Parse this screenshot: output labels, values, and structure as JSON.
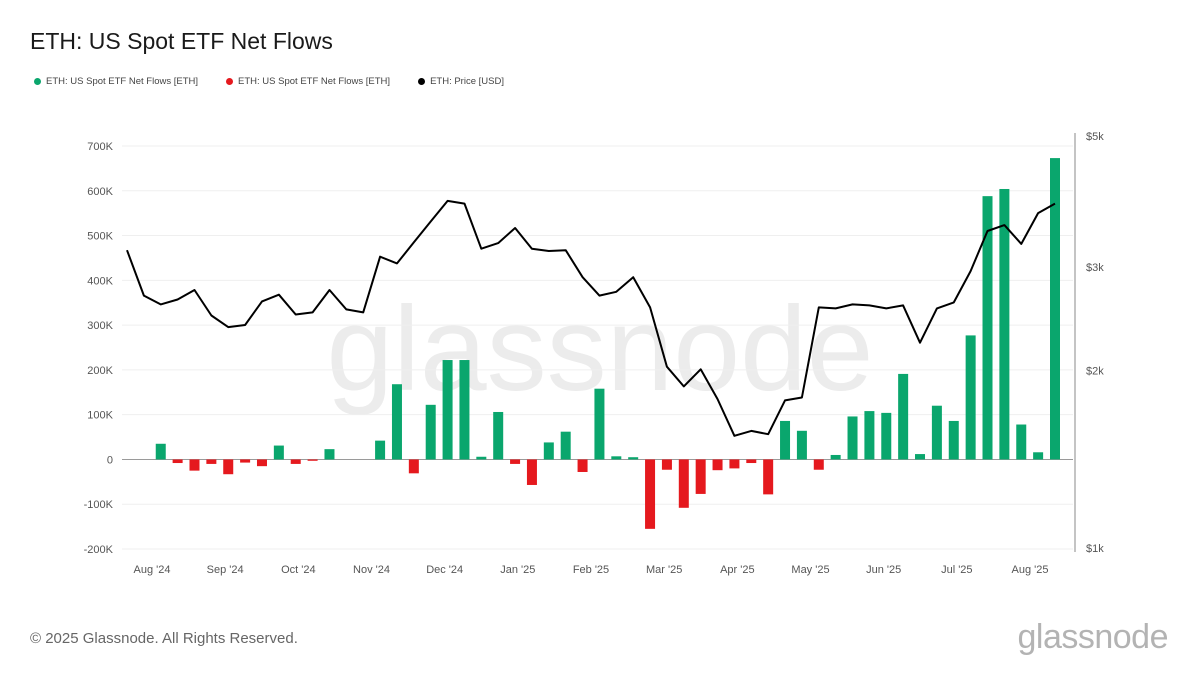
{
  "title": "ETH: US Spot ETF Net Flows",
  "legend": [
    {
      "label": "ETH: US Spot ETF Net Flows [ETH]",
      "color": "#0aa66d"
    },
    {
      "label": "ETH: US Spot ETF Net Flows [ETH]",
      "color": "#e5191e"
    },
    {
      "label": "ETH: Price [USD]",
      "color": "#000000"
    }
  ],
  "footer": "© 2025 Glassnode. All Rights Reserved.",
  "logo": "glassnode",
  "watermark": "glassnode",
  "chart_data": {
    "type": "bar",
    "x_labels": [
      "Aug '24",
      "Sep '24",
      "Oct '24",
      "Nov '24",
      "Dec '24",
      "Jan '25",
      "Feb '25",
      "Mar '25",
      "Apr '25",
      "May '25",
      "Jun '25",
      "Jul '25",
      "Aug '25"
    ],
    "y_left_ticks": [
      "700K",
      "600K",
      "500K",
      "400K",
      "300K",
      "200K",
      "100K",
      "0",
      "-100K",
      "-200K"
    ],
    "y_left_range": [
      -200000,
      700000
    ],
    "y_right_ticks": [
      "$5k",
      "$3k",
      "$2k",
      "$1k"
    ],
    "y_right_scale": "log",
    "y_right_range": [
      1000,
      5000
    ],
    "positive_color": "#0aa66d",
    "negative_color": "#e5191e",
    "price_color": "#000000",
    "flows": [
      0,
      0,
      35000,
      -8000,
      -25000,
      -10000,
      -33000,
      -7000,
      -15000,
      31000,
      -10000,
      -3000,
      23000,
      0,
      0,
      42000,
      168000,
      -31000,
      122000,
      222000,
      222000,
      6000,
      106000,
      -10000,
      -57000,
      38000,
      62000,
      -28000,
      158000,
      7000,
      5000,
      -155000,
      -23000,
      -108000,
      -77000,
      -24000,
      -20000,
      -8000,
      -78000,
      86000,
      64000,
      -23000,
      10000,
      96000,
      108000,
      104000,
      191000,
      12000,
      120000,
      86000,
      277000,
      588000,
      604000,
      78000,
      16000,
      673000
    ],
    "price": [
      3200,
      2680,
      2590,
      2640,
      2740,
      2480,
      2370,
      2390,
      2620,
      2690,
      2490,
      2510,
      2740,
      2540,
      2510,
      3120,
      3040,
      3300,
      3580,
      3880,
      3840,
      3220,
      3290,
      3490,
      3220,
      3190,
      3200,
      2880,
      2680,
      2720,
      2880,
      2560,
      2030,
      1880,
      2010,
      1790,
      1550,
      1580,
      1560,
      1780,
      1800,
      2560,
      2550,
      2590,
      2580,
      2550,
      2580,
      2230,
      2550,
      2610,
      2950,
      3450,
      3530,
      3280,
      3700,
      3840
    ]
  }
}
